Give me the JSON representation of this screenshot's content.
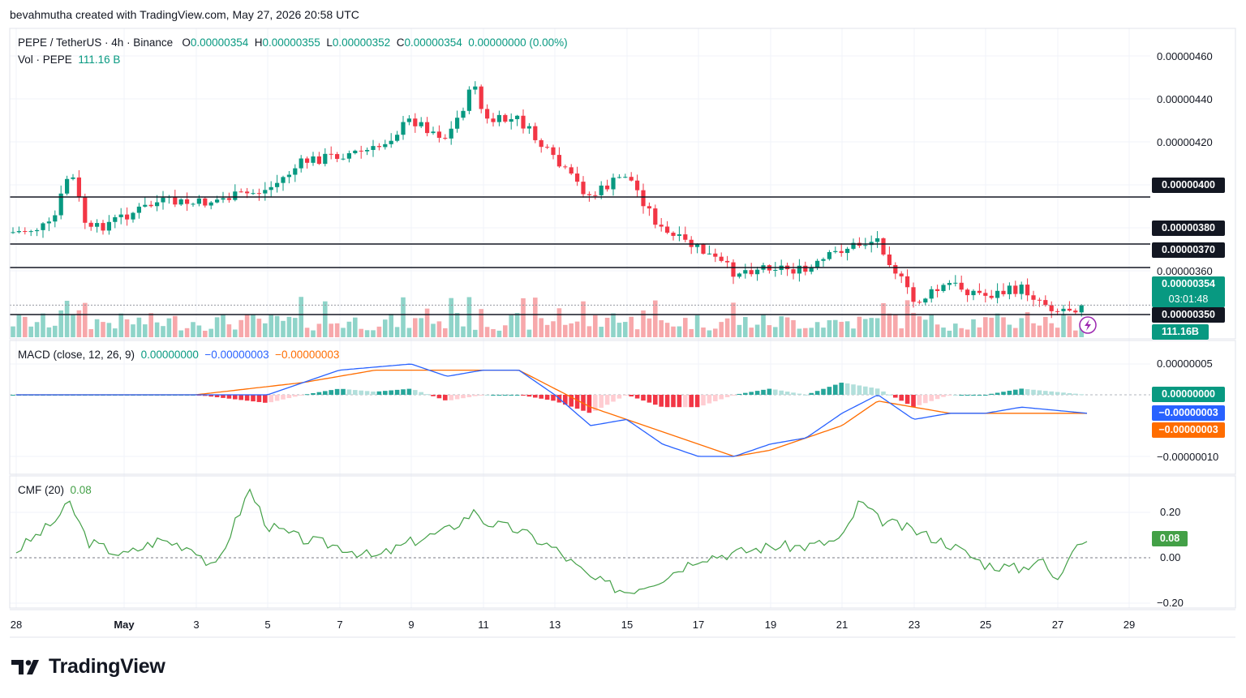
{
  "caption": "bevahmutha created with TradingView.com, May 27, 2026 20:58 UTC",
  "brand": "TradingView",
  "colors": {
    "up": "#089981",
    "down": "#f23645",
    "vol_up": "#8fd4c9",
    "vol_down": "#f7a8ab",
    "macd": "#2962ff",
    "signal": "#ff6d00",
    "cmf": "#43a047",
    "level": "#131722"
  },
  "legend": {
    "symbol": "PEPE / TetherUS · 4h · Binance",
    "o_label": "O",
    "o": "0.00000354",
    "h_label": "H",
    "h": "0.00000355",
    "l_label": "L",
    "l": "0.00000352",
    "c_label": "C",
    "c": "0.00000354",
    "chg": "0.00000000 (0.00%)",
    "vol_label": "Vol · PEPE",
    "vol": "111.16 B",
    "macd_label": "MACD (close, 12, 26, 9)",
    "macd_hist": "0.00000000",
    "macd_line": "−0.00000003",
    "macd_signal": "−0.00000003",
    "cmf_label": "CMF (20)",
    "cmf_value": "0.08"
  },
  "price_axis": {
    "ticks": [
      "0.00000460",
      "0.00000440",
      "0.00000420",
      "0.00000360"
    ],
    "level_tags": [
      "0.00000400",
      "0.00000380",
      "0.00000370",
      "0.00000350"
    ],
    "last_price": "0.00000354",
    "countdown": "03:01:48",
    "volume_tag": "111.16B"
  },
  "macd_axis": {
    "ticks": [
      "0.00000005",
      "−0.00000010"
    ],
    "hist_tag": "0.00000000",
    "macd_tag": "−0.00000003",
    "signal_tag": "−0.00000003"
  },
  "cmf_axis": {
    "ticks": [
      "0.20",
      "0.00",
      "−0.20"
    ],
    "value_tag": "0.08"
  },
  "x_axis": {
    "labels": [
      "28",
      "May",
      "3",
      "5",
      "7",
      "9",
      "11",
      "13",
      "15",
      "17",
      "19",
      "21",
      "23",
      "25",
      "27",
      "29"
    ]
  },
  "chart_data": {
    "type": "candlestick",
    "symbol": "PEPE / TetherUS",
    "timeframe": "4h",
    "exchange": "Binance",
    "x_range": [
      "2026-04-28",
      "2026-05-29"
    ],
    "price_range": [
      3.4e-06,
      4.7e-06
    ],
    "horizontal_levels": [
      4e-06,
      3.8e-06,
      3.7e-06,
      3.5e-06
    ],
    "price_path": [
      [
        "2026-04-28",
        3.85e-06
      ],
      [
        "2026-04-29",
        3.88e-06
      ],
      [
        "2026-04-29T12:00",
        4.12e-06
      ],
      [
        "2026-04-30",
        3.85e-06
      ],
      [
        "2026-05-01",
        3.92e-06
      ],
      [
        "2026-05-02",
        3.98e-06
      ],
      [
        "2026-05-03",
        3.97e-06
      ],
      [
        "2026-05-04",
        4e-06
      ],
      [
        "2026-05-05",
        4.03e-06
      ],
      [
        "2026-05-06",
        4.15e-06
      ],
      [
        "2026-05-07",
        4.18e-06
      ],
      [
        "2026-05-08",
        4.2e-06
      ],
      [
        "2026-05-09",
        4.33e-06
      ],
      [
        "2026-05-10",
        4.25e-06
      ],
      [
        "2026-05-10T20:00",
        4.5e-06
      ],
      [
        "2026-05-11",
        4.32e-06
      ],
      [
        "2026-05-12",
        4.33e-06
      ],
      [
        "2026-05-13",
        4.15e-06
      ],
      [
        "2026-05-14",
        4e-06
      ],
      [
        "2026-05-15",
        4.1e-06
      ],
      [
        "2026-05-16",
        3.85e-06
      ],
      [
        "2026-05-17",
        3.78e-06
      ],
      [
        "2026-05-18",
        3.68e-06
      ],
      [
        "2026-05-19",
        3.71e-06
      ],
      [
        "2026-05-20",
        3.68e-06
      ],
      [
        "2026-05-21",
        3.78e-06
      ],
      [
        "2026-05-22",
        3.82e-06
      ],
      [
        "2026-05-23",
        3.55e-06
      ],
      [
        "2026-05-24",
        3.63e-06
      ],
      [
        "2026-05-25",
        3.58e-06
      ],
      [
        "2026-05-26",
        3.61e-06
      ],
      [
        "2026-05-27",
        3.52e-06
      ],
      [
        "2026-05-27T20:00",
        3.54e-06
      ]
    ],
    "macd_range": [
      -1.2e-07,
      8e-08
    ],
    "macd_line": [
      [
        "2026-04-28",
        0.0
      ],
      [
        "2026-04-29",
        0.0
      ],
      [
        "2026-05-01",
        0.0
      ],
      [
        "2026-05-03",
        0.0
      ],
      [
        "2026-05-05",
        0.0
      ],
      [
        "2026-05-07",
        4e-08
      ],
      [
        "2026-05-09",
        5e-08
      ],
      [
        "2026-05-10",
        3e-08
      ],
      [
        "2026-05-11",
        4e-08
      ],
      [
        "2026-05-12",
        4e-08
      ],
      [
        "2026-05-13",
        0.0
      ],
      [
        "2026-05-14",
        -5e-08
      ],
      [
        "2026-05-15",
        -4e-08
      ],
      [
        "2026-05-16",
        -8e-08
      ],
      [
        "2026-05-17",
        -1e-07
      ],
      [
        "2026-05-18",
        -1e-07
      ],
      [
        "2026-05-19",
        -8e-08
      ],
      [
        "2026-05-20",
        -7e-08
      ],
      [
        "2026-05-21",
        -3e-08
      ],
      [
        "2026-05-22",
        0.0
      ],
      [
        "2026-05-23",
        -4e-08
      ],
      [
        "2026-05-24",
        -3e-08
      ],
      [
        "2026-05-25",
        -3e-08
      ],
      [
        "2026-05-26",
        -2e-08
      ],
      [
        "2026-05-27T20:00",
        -3e-08
      ]
    ],
    "signal_line": [
      [
        "2026-04-28",
        0.0
      ],
      [
        "2026-05-03",
        0.0
      ],
      [
        "2026-05-06",
        2e-08
      ],
      [
        "2026-05-08",
        4e-08
      ],
      [
        "2026-05-10",
        4e-08
      ],
      [
        "2026-05-12",
        4e-08
      ],
      [
        "2026-05-14",
        -2e-08
      ],
      [
        "2026-05-15",
        -4e-08
      ],
      [
        "2026-05-16",
        -6e-08
      ],
      [
        "2026-05-17",
        -8e-08
      ],
      [
        "2026-05-18",
        -1e-07
      ],
      [
        "2026-05-19",
        -9e-08
      ],
      [
        "2026-05-21",
        -5e-08
      ],
      [
        "2026-05-22",
        -1e-08
      ],
      [
        "2026-05-23",
        -2e-08
      ],
      [
        "2026-05-24",
        -3e-08
      ],
      [
        "2026-05-27T20:00",
        -3e-08
      ]
    ],
    "cmf_range": [
      -0.25,
      0.35
    ],
    "cmf": [
      [
        "2026-04-28",
        0.03
      ],
      [
        "2026-04-29",
        0.15
      ],
      [
        "2026-04-29T12:00",
        0.24
      ],
      [
        "2026-04-30",
        0.07
      ],
      [
        "2026-05-01",
        0.01
      ],
      [
        "2026-05-02",
        0.08
      ],
      [
        "2026-05-03",
        0.04
      ],
      [
        "2026-05-03T12:00",
        -0.06
      ],
      [
        "2026-05-04",
        0.12
      ],
      [
        "2026-05-04T12:00",
        0.3
      ],
      [
        "2026-05-05",
        0.14
      ],
      [
        "2026-05-06",
        0.08
      ],
      [
        "2026-05-07",
        0.05
      ],
      [
        "2026-05-08",
        0.0
      ],
      [
        "2026-05-09",
        0.07
      ],
      [
        "2026-05-10",
        0.12
      ],
      [
        "2026-05-10T20:00",
        0.21
      ],
      [
        "2026-05-11",
        0.16
      ],
      [
        "2026-05-12",
        0.12
      ],
      [
        "2026-05-13",
        0.04
      ],
      [
        "2026-05-14",
        -0.09
      ],
      [
        "2026-05-15",
        -0.15
      ],
      [
        "2026-05-16",
        -0.09
      ],
      [
        "2026-05-17",
        0.0
      ],
      [
        "2026-05-18",
        0.02
      ],
      [
        "2026-05-19",
        0.05
      ],
      [
        "2026-05-20",
        0.05
      ],
      [
        "2026-05-21",
        0.08
      ],
      [
        "2026-05-21T12:00",
        0.25
      ],
      [
        "2026-05-22",
        0.17
      ],
      [
        "2026-05-23",
        0.12
      ],
      [
        "2026-05-24",
        0.06
      ],
      [
        "2026-05-25",
        -0.03
      ],
      [
        "2026-05-26",
        -0.05
      ],
      [
        "2026-05-26T12:00",
        0.0
      ],
      [
        "2026-05-27",
        -0.11
      ],
      [
        "2026-05-27T12:00",
        0.08
      ],
      [
        "2026-05-27T20:00",
        0.08
      ]
    ]
  }
}
